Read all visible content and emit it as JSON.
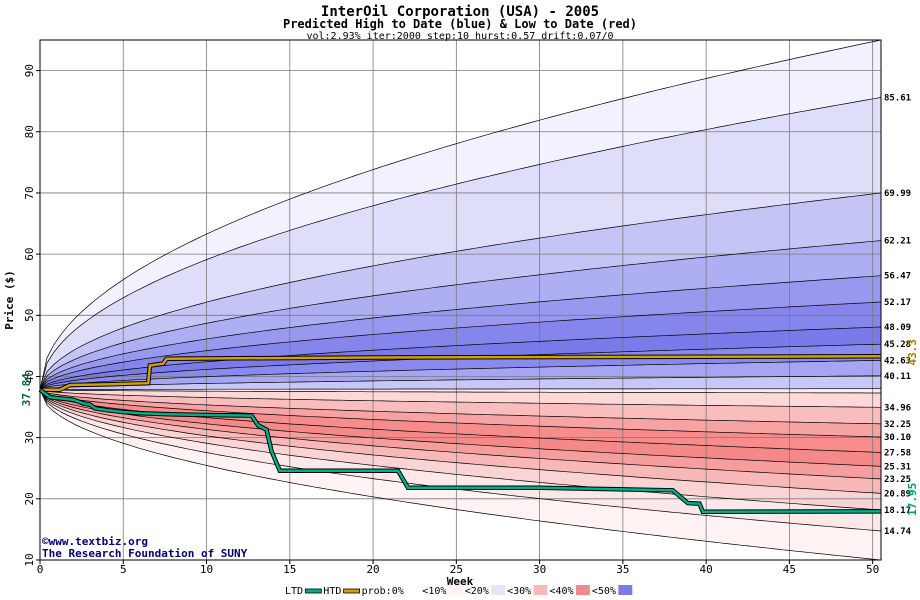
{
  "chart_data": {
    "type": "area",
    "title": "InterOil Corporation (USA) - 2005",
    "subtitle": "Predicted High to Date (blue) &  Low to Date (red)",
    "params": "vol:2.93% iter:2000 step:10 hurst:0.57 drift:0.07/0",
    "xlabel": "Week",
    "ylabel": "Price ($)",
    "xlim": [
      0,
      50.5
    ],
    "ylim": [
      10,
      95
    ],
    "xticks": [
      0,
      5,
      10,
      15,
      20,
      25,
      30,
      35,
      40,
      45,
      50
    ],
    "yticks": [
      10,
      20,
      30,
      40,
      50,
      60,
      70,
      80,
      90
    ],
    "grid": true,
    "start_value": 37.84,
    "start_label": "37.84",
    "high_bands": [
      {
        "end": 95.0,
        "color": "#f2f2ff"
      },
      {
        "end": 85.61,
        "color": "#dedefb"
      },
      {
        "end": 69.99,
        "color": "#c4c4f5"
      },
      {
        "end": 62.21,
        "color": "#aeaef2"
      },
      {
        "end": 56.47,
        "color": "#9898ef"
      },
      {
        "end": 52.17,
        "color": "#8585ec"
      },
      {
        "end": 48.09,
        "color": "#7a7aea"
      },
      {
        "end": 45.28,
        "color": "#8a8aee"
      },
      {
        "end": 42.63,
        "color": "#a5a5f3"
      },
      {
        "end": 40.11,
        "color": "#c8c8f8"
      },
      {
        "end": 38.0,
        "color": "#eeeeff"
      }
    ],
    "low_bands": [
      {
        "end": 10.0,
        "color": "#fff2f2"
      },
      {
        "end": 14.74,
        "color": "#fce8e8"
      },
      {
        "end": 18.17,
        "color": "#fad4d4"
      },
      {
        "end": 20.89,
        "color": "#f8b8b8"
      },
      {
        "end": 23.25,
        "color": "#f69e9e"
      },
      {
        "end": 25.31,
        "color": "#f58888"
      },
      {
        "end": 27.58,
        "color": "#f68c8c"
      },
      {
        "end": 30.1,
        "color": "#f7a3a3"
      },
      {
        "end": 32.25,
        "color": "#f9bdbd"
      },
      {
        "end": 34.96,
        "color": "#fdd8d8"
      },
      {
        "end": 37.3,
        "color": "#ffeaea"
      }
    ],
    "end_labels": [
      "85.61",
      "69.99",
      "62.21",
      "56.47",
      "52.17",
      "48.09",
      "45.28",
      "42.63",
      "40.11",
      "34.96",
      "32.25",
      "30.10",
      "27.58",
      "25.31",
      "23.25",
      "20.89",
      "18.17",
      "14.74"
    ],
    "htd": {
      "name": "HTD",
      "color": "#d4a000",
      "final_label": "43.3",
      "points": [
        [
          0,
          37.84
        ],
        [
          1.2,
          37.84
        ],
        [
          1.8,
          38.6
        ],
        [
          4,
          38.7
        ],
        [
          6.5,
          38.9
        ],
        [
          6.6,
          41.8
        ],
        [
          7.4,
          42.1
        ],
        [
          7.6,
          42.9
        ],
        [
          20,
          43.1
        ],
        [
          50.5,
          43.3
        ]
      ]
    },
    "ltd": {
      "name": "LTD",
      "color": "#00b08a",
      "final_label": "17.95",
      "points": [
        [
          0,
          37.84
        ],
        [
          0.6,
          36.6
        ],
        [
          2,
          36.2
        ],
        [
          2.6,
          35.6
        ],
        [
          3,
          35.4
        ],
        [
          3.3,
          34.8
        ],
        [
          4,
          34.5
        ],
        [
          5,
          34.2
        ],
        [
          6,
          34.0
        ],
        [
          8,
          33.8
        ],
        [
          10,
          33.7
        ],
        [
          12.7,
          33.6
        ],
        [
          13.1,
          32.0
        ],
        [
          13.6,
          31.3
        ],
        [
          13.9,
          27.8
        ],
        [
          14.4,
          24.6
        ],
        [
          18,
          24.6
        ],
        [
          21.5,
          24.6
        ],
        [
          22.1,
          21.8
        ],
        [
          30,
          21.8
        ],
        [
          38,
          21.4
        ],
        [
          38.9,
          19.3
        ],
        [
          39.6,
          19.2
        ],
        [
          39.8,
          17.9
        ],
        [
          50.5,
          17.95
        ]
      ]
    },
    "legend": {
      "placement": "bottom",
      "items": [
        {
          "label": "LTD",
          "color": "#00b08a",
          "kind": "line"
        },
        {
          "label": "HTD",
          "color": "#d4a000",
          "kind": "line"
        },
        {
          "label": "prob:0%",
          "color": "#ffffff",
          "kind": "swatch"
        },
        {
          "label": "<10%",
          "color": "#fff2f2",
          "kind": "swatch"
        },
        {
          "label": "<20%",
          "color": "#e6e6fb",
          "kind": "swatch"
        },
        {
          "label": "<30%",
          "color": "#f8b8b8",
          "kind": "swatch"
        },
        {
          "label": "<40%",
          "color": "#f08a8a",
          "kind": "swatch"
        },
        {
          "label": "<50%",
          "color": "#7a7aea",
          "kind": "swatch"
        }
      ]
    },
    "watermark": {
      "line1": "©www.textbiz.org",
      "line2": "The Research Foundation of SUNY"
    }
  }
}
